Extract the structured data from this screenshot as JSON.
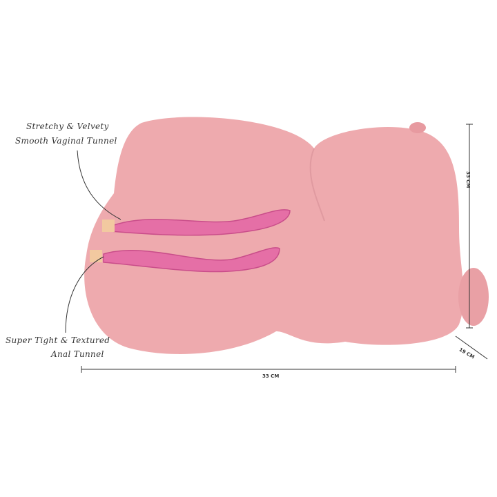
{
  "callouts": {
    "top_line1": "Stretchy & Velvety",
    "top_line2": "Smooth Vaginal Tunnel",
    "bottom_line1": "Super Tight & Textured",
    "bottom_line2": "Anal Tunnel"
  },
  "dimensions": {
    "width": "33 CM",
    "height": "33 CM",
    "depth": "19 CM"
  },
  "colors": {
    "body": "#eeaaae",
    "tunnel": "#e56fa6",
    "line": "#333333"
  }
}
